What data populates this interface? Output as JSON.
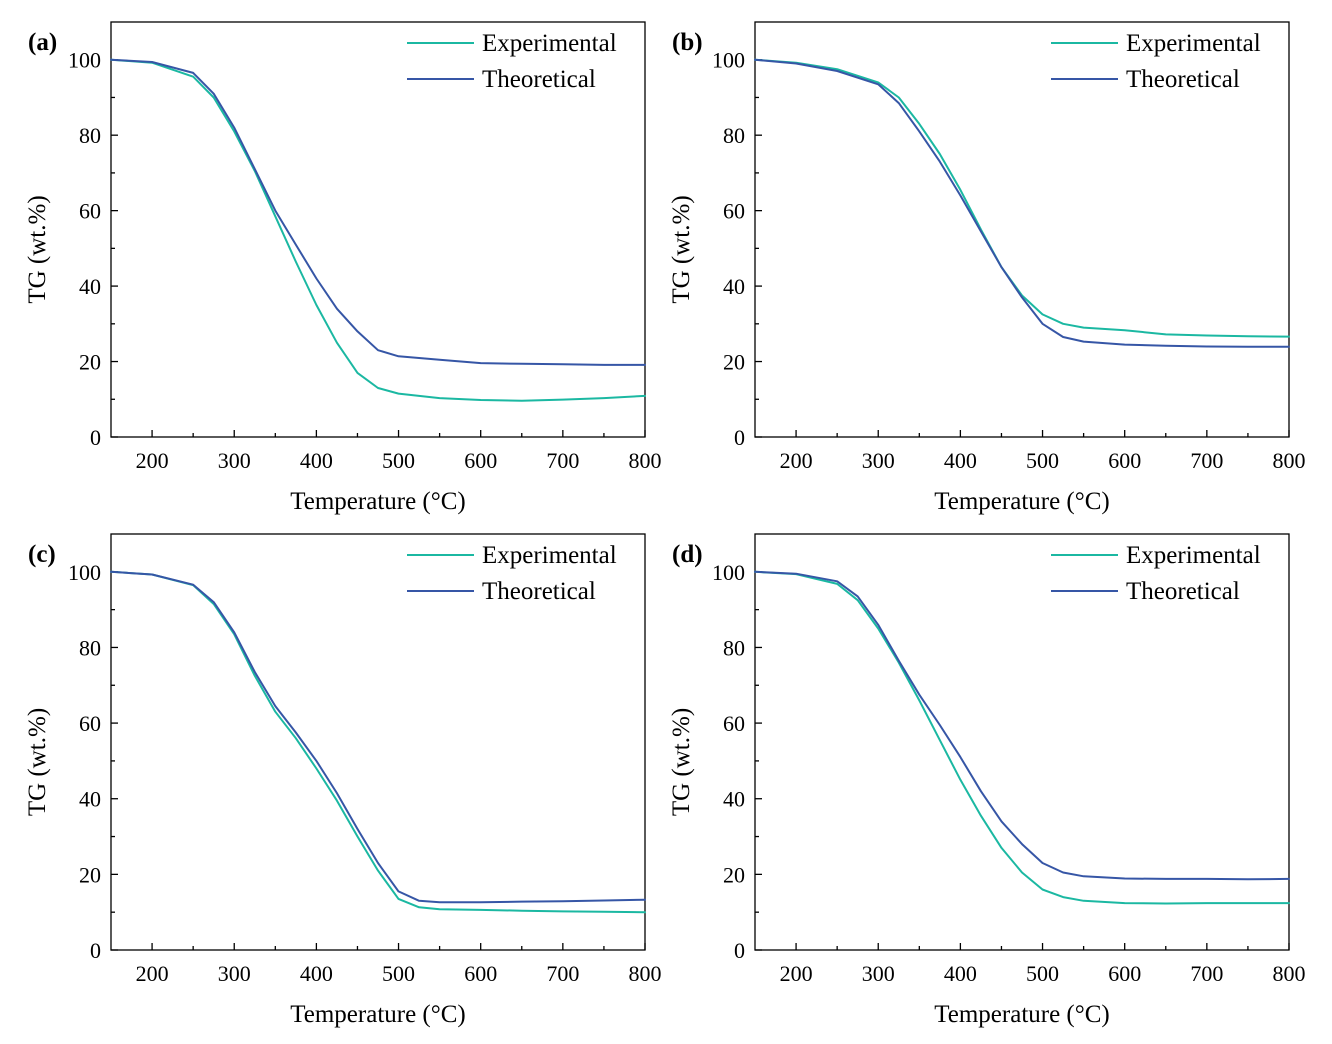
{
  "colors": {
    "experimental": "#1bb8a2",
    "theoretical": "#3656a6"
  },
  "chart_data": [
    {
      "type": "line",
      "panel_label": "(a)",
      "xlabel": "Temperature (°C)",
      "ylabel": "TG (wt.%)",
      "xlim": [
        150,
        800
      ],
      "ylim": [
        0,
        110
      ],
      "xticks": [
        200,
        300,
        400,
        500,
        600,
        700,
        800
      ],
      "yticks": [
        0,
        20,
        40,
        60,
        80,
        100
      ],
      "grid": false,
      "legend_position": "top-right",
      "series": [
        {
          "name": "Experimental",
          "color_key": "experimental",
          "x": [
            150,
            200,
            250,
            275,
            300,
            325,
            350,
            375,
            400,
            425,
            450,
            475,
            500,
            550,
            600,
            650,
            700,
            750,
            800
          ],
          "y": [
            100,
            99.2,
            95.5,
            90,
            81,
            70.5,
            58.5,
            46.5,
            35,
            25,
            17,
            13,
            11.5,
            10.3,
            9.8,
            9.6,
            9.9,
            10.3,
            10.9
          ]
        },
        {
          "name": "Theoretical",
          "color_key": "theoretical",
          "x": [
            150,
            200,
            250,
            275,
            300,
            325,
            350,
            375,
            400,
            425,
            450,
            475,
            500,
            550,
            600,
            650,
            700,
            750,
            800
          ],
          "y": [
            100,
            99.4,
            96.5,
            91,
            82,
            71,
            60,
            51,
            42,
            34,
            28,
            23,
            21.4,
            20.5,
            19.6,
            19.4,
            19.3,
            19.1,
            19.1
          ]
        }
      ]
    },
    {
      "type": "line",
      "panel_label": "(b)",
      "xlabel": "Temperature (°C)",
      "ylabel": "TG (wt.%)",
      "xlim": [
        150,
        800
      ],
      "ylim": [
        0,
        110
      ],
      "xticks": [
        200,
        300,
        400,
        500,
        600,
        700,
        800
      ],
      "yticks": [
        0,
        20,
        40,
        60,
        80,
        100
      ],
      "grid": false,
      "legend_position": "top-right",
      "series": [
        {
          "name": "Experimental",
          "color_key": "experimental",
          "x": [
            150,
            200,
            250,
            300,
            325,
            350,
            375,
            400,
            425,
            450,
            475,
            500,
            525,
            550,
            600,
            650,
            700,
            750,
            800
          ],
          "y": [
            100,
            99.2,
            97.5,
            94,
            90,
            83,
            75,
            65.5,
            55,
            45,
            37.5,
            32.5,
            30,
            29,
            28.3,
            27.2,
            26.9,
            26.7,
            26.6
          ]
        },
        {
          "name": "Theoretical",
          "color_key": "theoretical",
          "x": [
            150,
            200,
            250,
            300,
            325,
            350,
            375,
            400,
            425,
            450,
            475,
            500,
            525,
            550,
            600,
            650,
            700,
            750,
            800
          ],
          "y": [
            100,
            99,
            97,
            93.5,
            88.5,
            81,
            73,
            64,
            54.5,
            45,
            37,
            30,
            26.5,
            25.3,
            24.5,
            24.2,
            24,
            23.9,
            23.9
          ]
        }
      ]
    },
    {
      "type": "line",
      "panel_label": "(c)",
      "xlabel": "Temperature (°C)",
      "ylabel": "TG (wt.%)",
      "xlim": [
        150,
        800
      ],
      "ylim": [
        0,
        110
      ],
      "xticks": [
        200,
        300,
        400,
        500,
        600,
        700,
        800
      ],
      "yticks": [
        0,
        20,
        40,
        60,
        80,
        100
      ],
      "grid": false,
      "legend_position": "top-right",
      "series": [
        {
          "name": "Experimental",
          "color_key": "experimental",
          "x": [
            150,
            200,
            250,
            275,
            300,
            325,
            350,
            375,
            400,
            425,
            450,
            475,
            500,
            525,
            550,
            600,
            650,
            700,
            750,
            800
          ],
          "y": [
            100,
            99.3,
            96.5,
            91.5,
            83.5,
            72.5,
            63,
            56,
            48,
            39.5,
            30,
            21,
            13.5,
            11.3,
            10.8,
            10.6,
            10.4,
            10.2,
            10.1,
            10
          ]
        },
        {
          "name": "Theoretical",
          "color_key": "theoretical",
          "x": [
            150,
            200,
            250,
            275,
            300,
            325,
            350,
            375,
            400,
            425,
            450,
            475,
            500,
            525,
            550,
            600,
            650,
            700,
            750,
            800
          ],
          "y": [
            100,
            99.3,
            96.6,
            92,
            84,
            73.5,
            64.5,
            57.5,
            50,
            41.5,
            32,
            23,
            15.5,
            13,
            12.6,
            12.6,
            12.8,
            12.9,
            13.1,
            13.3
          ]
        }
      ]
    },
    {
      "type": "line",
      "panel_label": "(d)",
      "xlabel": "Temperature (°C)",
      "ylabel": "TG (wt.%)",
      "xlim": [
        150,
        800
      ],
      "ylim": [
        0,
        110
      ],
      "xticks": [
        200,
        300,
        400,
        500,
        600,
        700,
        800
      ],
      "yticks": [
        0,
        20,
        40,
        60,
        80,
        100
      ],
      "grid": false,
      "legend_position": "top-right",
      "series": [
        {
          "name": "Experimental",
          "color_key": "experimental",
          "x": [
            150,
            200,
            250,
            275,
            300,
            325,
            350,
            375,
            400,
            425,
            450,
            475,
            500,
            525,
            550,
            600,
            650,
            700,
            750,
            800
          ],
          "y": [
            100,
            99.4,
            96.8,
            92.5,
            85,
            76,
            66,
            55.5,
            45,
            35.5,
            27,
            20.5,
            16,
            14,
            13,
            12.4,
            12.3,
            12.4,
            12.4,
            12.4
          ]
        },
        {
          "name": "Theoretical",
          "color_key": "theoretical",
          "x": [
            150,
            200,
            250,
            275,
            300,
            325,
            350,
            375,
            400,
            425,
            450,
            475,
            500,
            525,
            550,
            600,
            650,
            700,
            750,
            800
          ],
          "y": [
            100,
            99.5,
            97.5,
            93.5,
            86,
            76.5,
            67.5,
            59.5,
            51,
            42,
            34,
            28,
            23,
            20.5,
            19.5,
            18.9,
            18.8,
            18.8,
            18.7,
            18.8
          ]
        }
      ]
    }
  ]
}
